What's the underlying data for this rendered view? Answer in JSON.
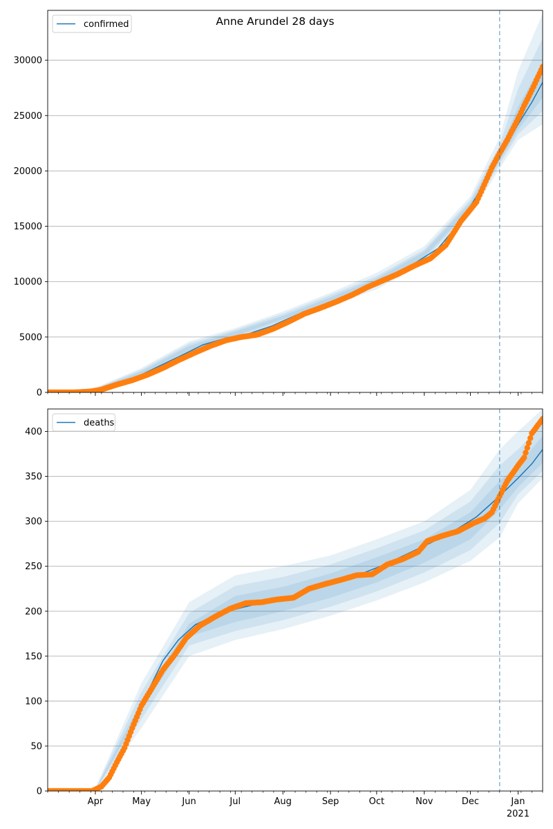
{
  "title": "Anne Arundel 28 days",
  "colors": {
    "model": "#1f77b4",
    "observed": "#ff7f0e",
    "band": "#1f77b4",
    "vline": "#1f77b4",
    "grid": "#b0b0b0"
  },
  "x_axis": {
    "range": [
      "2020-03-01",
      "2021-01-17"
    ],
    "month_ticks": [
      {
        "date": "2020-04-01",
        "label": "Apr"
      },
      {
        "date": "2020-05-01",
        "label": "May"
      },
      {
        "date": "2020-06-01",
        "label": "Jun"
      },
      {
        "date": "2020-07-01",
        "label": "Jul"
      },
      {
        "date": "2020-08-01",
        "label": "Aug"
      },
      {
        "date": "2020-09-01",
        "label": "Sep"
      },
      {
        "date": "2020-10-01",
        "label": "Oct"
      },
      {
        "date": "2020-11-01",
        "label": "Nov"
      },
      {
        "date": "2020-12-01",
        "label": "Dec"
      },
      {
        "date": "2021-01-01",
        "label": "Jan",
        "sublabel": "2021"
      }
    ],
    "forecast_start": "2020-12-20"
  },
  "chart_data": [
    {
      "type": "line",
      "legend": [
        "confirmed"
      ],
      "legend_position": "top-left",
      "grid": "y",
      "ylim": [
        0,
        34500
      ],
      "yticks": [
        0,
        5000,
        10000,
        15000,
        20000,
        25000,
        30000
      ],
      "model": {
        "name": "confirmed",
        "points": [
          [
            "2020-03-01",
            0
          ],
          [
            "2020-03-15",
            0
          ],
          [
            "2020-03-28",
            50
          ],
          [
            "2020-04-10",
            400
          ],
          [
            "2020-04-25",
            1200
          ],
          [
            "2020-05-10",
            2200
          ],
          [
            "2020-05-25",
            3200
          ],
          [
            "2020-06-10",
            4300
          ],
          [
            "2020-06-25",
            4900
          ],
          [
            "2020-07-10",
            5300
          ],
          [
            "2020-07-25",
            6000
          ],
          [
            "2020-08-10",
            7000
          ],
          [
            "2020-08-25",
            7800
          ],
          [
            "2020-09-10",
            8600
          ],
          [
            "2020-09-25",
            9400
          ],
          [
            "2020-10-10",
            10400
          ],
          [
            "2020-10-25",
            11600
          ],
          [
            "2020-11-10",
            13000
          ],
          [
            "2020-11-25",
            15500
          ],
          [
            "2020-12-10",
            18800
          ],
          [
            "2020-12-20",
            21300
          ],
          [
            "2021-01-01",
            24200
          ],
          [
            "2021-01-10",
            26200
          ],
          [
            "2021-01-17",
            28000
          ]
        ]
      },
      "observed": {
        "points": [
          [
            "2020-03-01",
            0
          ],
          [
            "2020-03-20",
            10
          ],
          [
            "2020-03-29",
            80
          ],
          [
            "2020-04-05",
            250
          ],
          [
            "2020-04-15",
            700
          ],
          [
            "2020-04-25",
            1100
          ],
          [
            "2020-05-05",
            1600
          ],
          [
            "2020-05-15",
            2200
          ],
          [
            "2020-05-25",
            2900
          ],
          [
            "2020-06-05",
            3600
          ],
          [
            "2020-06-15",
            4200
          ],
          [
            "2020-06-25",
            4700
          ],
          [
            "2020-07-05",
            5000
          ],
          [
            "2020-07-15",
            5200
          ],
          [
            "2020-07-25",
            5700
          ],
          [
            "2020-08-05",
            6400
          ],
          [
            "2020-08-15",
            7100
          ],
          [
            "2020-08-25",
            7600
          ],
          [
            "2020-09-05",
            8200
          ],
          [
            "2020-09-15",
            8800
          ],
          [
            "2020-09-25",
            9500
          ],
          [
            "2020-10-05",
            10100
          ],
          [
            "2020-10-15",
            10700
          ],
          [
            "2020-10-25",
            11400
          ],
          [
            "2020-11-05",
            12100
          ],
          [
            "2020-11-15",
            13300
          ],
          [
            "2020-11-25",
            15500
          ],
          [
            "2020-12-05",
            17200
          ],
          [
            "2020-12-15",
            20300
          ],
          [
            "2020-12-20",
            21600
          ],
          [
            "2020-12-25",
            22800
          ],
          [
            "2021-01-01",
            24700
          ],
          [
            "2021-01-05",
            25900
          ],
          [
            "2021-01-10",
            27300
          ],
          [
            "2021-01-17",
            29400
          ]
        ]
      },
      "bands": {
        "dates": [
          "2020-03-01",
          "2020-04-01",
          "2020-05-01",
          "2020-06-01",
          "2020-07-01",
          "2020-08-01",
          "2020-09-01",
          "2020-10-01",
          "2020-11-01",
          "2020-12-01",
          "2020-12-20",
          "2021-01-01",
          "2021-01-17"
        ],
        "outer": [
          [
            0,
            0
          ],
          [
            60,
            420
          ],
          [
            1300,
            2200
          ],
          [
            3400,
            4600
          ],
          [
            4800,
            5800
          ],
          [
            6200,
            7300
          ],
          [
            7800,
            9000
          ],
          [
            9300,
            10800
          ],
          [
            11700,
            13200
          ],
          [
            16000,
            17700
          ],
          [
            20200,
            23000
          ],
          [
            22800,
            29000
          ],
          [
            24200,
            34200
          ]
        ],
        "middle": [
          [
            0,
            0
          ],
          [
            100,
            360
          ],
          [
            1450,
            2050
          ],
          [
            3600,
            4400
          ],
          [
            4950,
            5650
          ],
          [
            6400,
            7100
          ],
          [
            8000,
            8800
          ],
          [
            9600,
            10500
          ],
          [
            12000,
            12900
          ],
          [
            16300,
            17400
          ],
          [
            20600,
            22300
          ],
          [
            23300,
            27400
          ],
          [
            25400,
            32000
          ]
        ],
        "inner": [
          [
            0,
            0
          ],
          [
            140,
            320
          ],
          [
            1600,
            1900
          ],
          [
            3800,
            4200
          ],
          [
            5100,
            5500
          ],
          [
            6600,
            6900
          ],
          [
            8200,
            8600
          ],
          [
            9800,
            10300
          ],
          [
            12200,
            12700
          ],
          [
            16550,
            17150
          ],
          [
            20900,
            21800
          ],
          [
            23700,
            25800
          ],
          [
            26600,
            29800
          ]
        ]
      }
    },
    {
      "type": "line",
      "legend": [
        "deaths"
      ],
      "legend_position": "top-left",
      "grid": "y",
      "ylim": [
        0,
        425
      ],
      "yticks": [
        0,
        50,
        100,
        150,
        200,
        250,
        300,
        350,
        400
      ],
      "model": {
        "name": "deaths",
        "points": [
          [
            "2020-03-01",
            0
          ],
          [
            "2020-03-28",
            0
          ],
          [
            "2020-04-05",
            5
          ],
          [
            "2020-04-15",
            30
          ],
          [
            "2020-04-25",
            70
          ],
          [
            "2020-05-05",
            110
          ],
          [
            "2020-05-15",
            145
          ],
          [
            "2020-05-25",
            168
          ],
          [
            "2020-06-05",
            185
          ],
          [
            "2020-06-20",
            197
          ],
          [
            "2020-07-05",
            204
          ],
          [
            "2020-07-20",
            210
          ],
          [
            "2020-08-05",
            216
          ],
          [
            "2020-08-20",
            224
          ],
          [
            "2020-09-05",
            233
          ],
          [
            "2020-09-20",
            241
          ],
          [
            "2020-10-05",
            251
          ],
          [
            "2020-10-20",
            263
          ],
          [
            "2020-11-05",
            276
          ],
          [
            "2020-11-20",
            289
          ],
          [
            "2020-12-05",
            305
          ],
          [
            "2020-12-20",
            328
          ],
          [
            "2021-01-01",
            348
          ],
          [
            "2021-01-10",
            364
          ],
          [
            "2021-01-17",
            380
          ]
        ]
      },
      "observed": {
        "points": [
          [
            "2020-03-01",
            0
          ],
          [
            "2020-03-30",
            0
          ],
          [
            "2020-04-05",
            5
          ],
          [
            "2020-04-10",
            15
          ],
          [
            "2020-04-15",
            32
          ],
          [
            "2020-04-20",
            48
          ],
          [
            "2020-04-25",
            70
          ],
          [
            "2020-05-01",
            95
          ],
          [
            "2020-05-08",
            115
          ],
          [
            "2020-05-15",
            135
          ],
          [
            "2020-05-22",
            150
          ],
          [
            "2020-05-30",
            170
          ],
          [
            "2020-06-08",
            184
          ],
          [
            "2020-06-18",
            194
          ],
          [
            "2020-06-28",
            203
          ],
          [
            "2020-07-08",
            209
          ],
          [
            "2020-07-18",
            210
          ],
          [
            "2020-07-28",
            213
          ],
          [
            "2020-08-08",
            215
          ],
          [
            "2020-08-18",
            225
          ],
          [
            "2020-08-28",
            230
          ],
          [
            "2020-09-08",
            235
          ],
          [
            "2020-09-18",
            240
          ],
          [
            "2020-09-28",
            241
          ],
          [
            "2020-10-08",
            252
          ],
          [
            "2020-10-18",
            258
          ],
          [
            "2020-10-28",
            266
          ],
          [
            "2020-11-03",
            278
          ],
          [
            "2020-11-13",
            284
          ],
          [
            "2020-11-23",
            289
          ],
          [
            "2020-12-03",
            298
          ],
          [
            "2020-12-10",
            303
          ],
          [
            "2020-12-15",
            310
          ],
          [
            "2020-12-20",
            328
          ],
          [
            "2020-12-25",
            345
          ],
          [
            "2021-01-01",
            362
          ],
          [
            "2021-01-05",
            371
          ],
          [
            "2021-01-10",
            398
          ],
          [
            "2021-01-17",
            414
          ]
        ]
      },
      "bands": {
        "dates": [
          "2020-03-01",
          "2020-04-01",
          "2020-05-01",
          "2020-06-01",
          "2020-07-01",
          "2020-08-01",
          "2020-09-01",
          "2020-10-01",
          "2020-11-01",
          "2020-12-01",
          "2020-12-20",
          "2021-01-01",
          "2021-01-17"
        ],
        "outer": [
          [
            0,
            0
          ],
          [
            0,
            3
          ],
          [
            70,
            120
          ],
          [
            150,
            210
          ],
          [
            168,
            240
          ],
          [
            180,
            250
          ],
          [
            195,
            262
          ],
          [
            212,
            280
          ],
          [
            232,
            300
          ],
          [
            256,
            335
          ],
          [
            282,
            380
          ],
          [
            320,
            400
          ],
          [
            348,
            425
          ]
        ],
        "middle": [
          [
            0,
            0
          ],
          [
            0,
            2
          ],
          [
            80,
            110
          ],
          [
            162,
            198
          ],
          [
            178,
            228
          ],
          [
            190,
            238
          ],
          [
            205,
            252
          ],
          [
            222,
            270
          ],
          [
            243,
            290
          ],
          [
            268,
            322
          ],
          [
            298,
            362
          ],
          [
            330,
            380
          ],
          [
            356,
            408
          ]
        ],
        "inner": [
          [
            0,
            0
          ],
          [
            0,
            1
          ],
          [
            90,
            100
          ],
          [
            172,
            186
          ],
          [
            188,
            217
          ],
          [
            200,
            227
          ],
          [
            215,
            242
          ],
          [
            232,
            260
          ],
          [
            254,
            280
          ],
          [
            280,
            310
          ],
          [
            313,
            345
          ],
          [
            338,
            362
          ],
          [
            365,
            395
          ]
        ]
      }
    }
  ]
}
